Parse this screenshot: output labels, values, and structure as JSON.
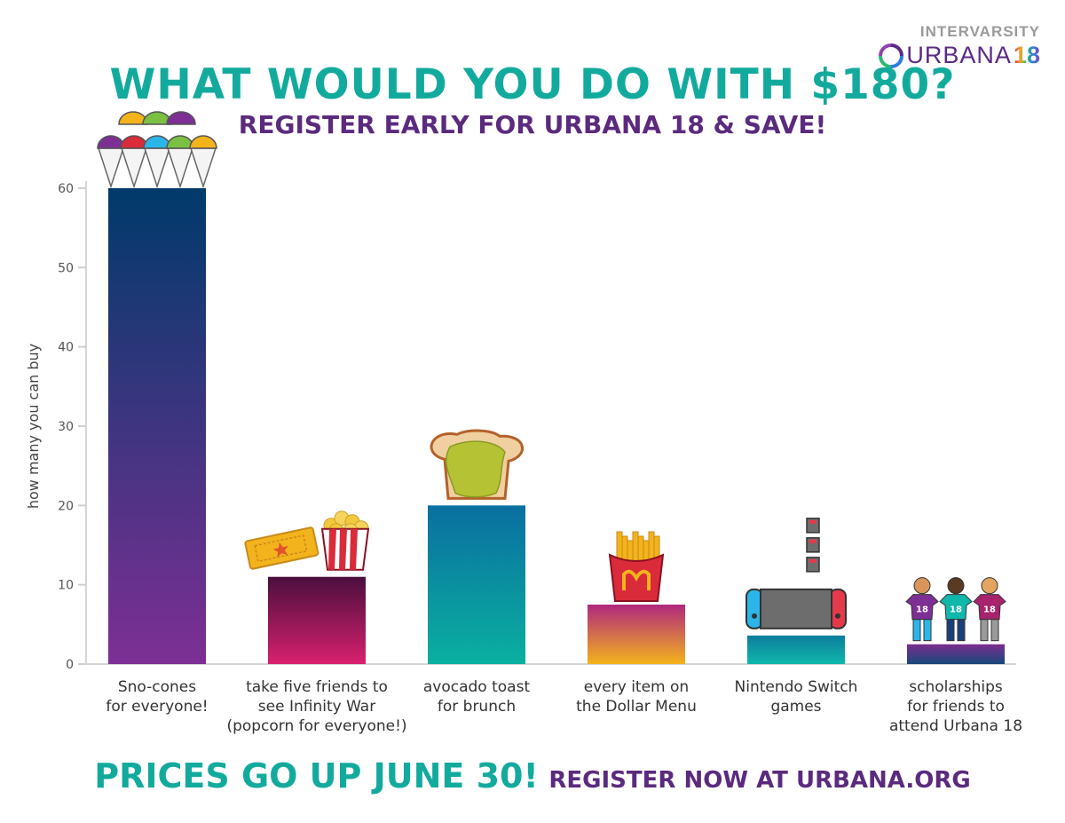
{
  "logo": {
    "top": "INTERVARSITY",
    "word": "URBANA",
    "num": "18"
  },
  "title": "WHAT WOULD YOU DO WITH $180?",
  "subtitle": "REGISTER EARLY FOR URBANA 18 & SAVE!",
  "footer": {
    "big": "PRICES GO UP JUNE 30!",
    "small": "REGISTER NOW AT URBANA.ORG"
  },
  "chart_data": {
    "type": "bar",
    "title": "WHAT WOULD YOU DO WITH $180?",
    "xlabel": "",
    "ylabel": "how many you can buy",
    "ylim": [
      0,
      60
    ],
    "yticks": [
      0,
      10,
      20,
      30,
      40,
      50,
      60
    ],
    "grid": false,
    "categories": [
      [
        "Sno-cones",
        "for everyone!"
      ],
      [
        "take five friends to",
        "see Infinity War",
        "(popcorn for everyone!)"
      ],
      [
        "avocado toast",
        "for brunch"
      ],
      [
        "every item on",
        "the Dollar Menu"
      ],
      [
        "Nintendo Switch",
        "games"
      ],
      [
        "scholarships",
        "for friends to",
        "attend Urbana 18"
      ]
    ],
    "values": [
      60,
      11,
      20,
      7.5,
      3.6,
      2.5
    ],
    "bar_colors": [
      [
        "#003a6b",
        "#7d2f94"
      ],
      [
        "#4a0f3d",
        "#d8206e"
      ],
      [
        "#0a6fa0",
        "#0ab0a0"
      ],
      [
        "#b0287e",
        "#f3b31c"
      ],
      [
        "#0c7d9c",
        "#10b7ab"
      ],
      [
        "#7c2d8f",
        "#17487a"
      ]
    ],
    "illustrations": [
      "snocone-icon",
      "ticket-popcorn-icon",
      "toast-icon",
      "fries-icon",
      "game-console-icon",
      "students-icon"
    ],
    "jersey_label": "18"
  }
}
